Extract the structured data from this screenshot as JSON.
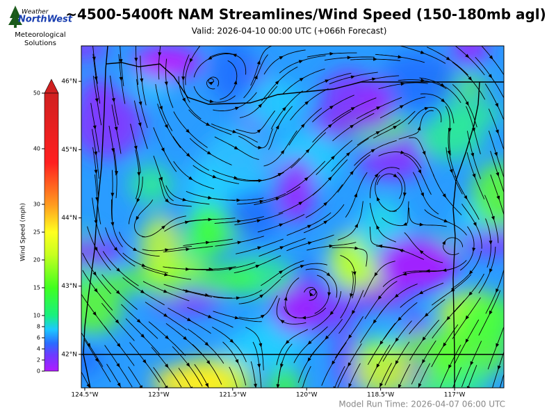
{
  "header": {
    "logo_text": [
      "Weather",
      "NorthWest"
    ],
    "logo_caption": [
      "Meteorological",
      "Solutions"
    ],
    "title": "~4500-5400ft NAM Streamlines/Wind Speed (150-180mb agl)",
    "valid": "Valid: 2026-04-10 00:00 UTC  (+066h Forecast)"
  },
  "map": {
    "xlim": [
      -124.57,
      -116.0
    ],
    "ylim": [
      41.51,
      46.52
    ],
    "xticks": [
      {
        "value": -124.5,
        "label": "124.5°W"
      },
      {
        "value": -123,
        "label": "123°W"
      },
      {
        "value": -121.5,
        "label": "121.5°W"
      },
      {
        "value": -120,
        "label": "120°W"
      },
      {
        "value": -118.5,
        "label": "118.5°W"
      },
      {
        "value": -117,
        "label": "117°W"
      }
    ],
    "yticks": [
      {
        "value": 46,
        "label": "46°N"
      },
      {
        "value": 45,
        "label": "45°N"
      },
      {
        "value": 44,
        "label": "44°N"
      },
      {
        "value": 43,
        "label": "43°N"
      },
      {
        "value": 42,
        "label": "42°N"
      }
    ]
  },
  "colorbar": {
    "label": "Wind Speed (mph)",
    "lim": [
      0,
      50
    ],
    "ticks": [
      0,
      2,
      4,
      6,
      8,
      10,
      15,
      20,
      25,
      30,
      40,
      50
    ]
  },
  "footer": {
    "model_run": "Model Run Time: 2026-04-07 06:00 UTC"
  }
}
